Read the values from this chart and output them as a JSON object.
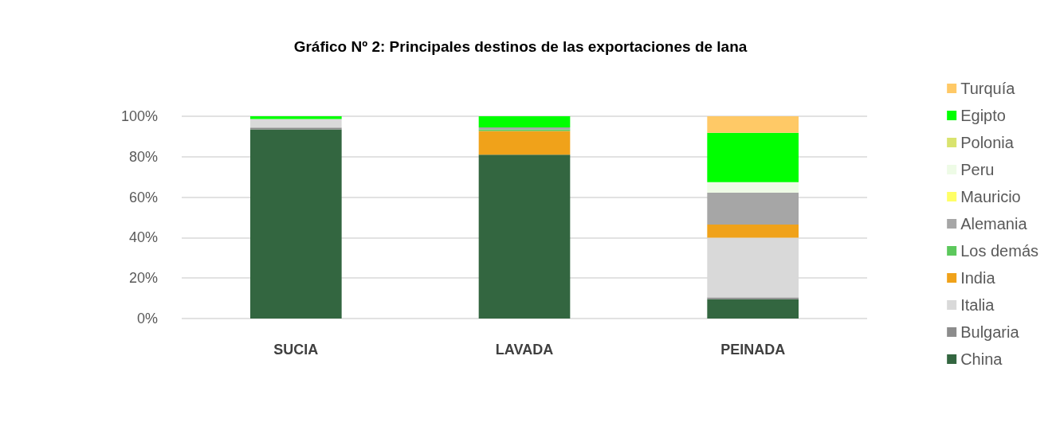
{
  "chart_data": {
    "type": "bar",
    "title": "Gráfico Nº 2: Principales destinos de las exportaciones de lana",
    "categories": [
      "SUCIA",
      "LAVADA",
      "PEINADA"
    ],
    "stacked": true,
    "ylim": [
      0,
      100
    ],
    "yticks": [
      {
        "value": 0,
        "label": "0%"
      },
      {
        "value": 20,
        "label": "20%"
      },
      {
        "value": 40,
        "label": "40%"
      },
      {
        "value": 60,
        "label": "60%"
      },
      {
        "value": 80,
        "label": "80%"
      },
      {
        "value": 100,
        "label": "100%"
      }
    ],
    "grid": "y",
    "legend": "right",
    "series": [
      {
        "name": "China",
        "color": "#336640",
        "values": [
          93.5,
          81,
          9.5
        ]
      },
      {
        "name": "Bulgaria",
        "color": "#8c8c8c",
        "values": [
          0.9,
          0,
          0.9
        ]
      },
      {
        "name": "Italia",
        "color": "#d9d9d9",
        "values": [
          4.2,
          0,
          29.6
        ]
      },
      {
        "name": "India",
        "color": "#f0a21a",
        "values": [
          0,
          11.7,
          6.5
        ]
      },
      {
        "name": "Los demás",
        "color": "#5cc85c",
        "values": [
          0,
          0.8,
          0
        ]
      },
      {
        "name": "Alemania",
        "color": "#a6a6a6",
        "values": [
          0,
          1,
          15.7
        ]
      },
      {
        "name": "Mauricio",
        "color": "#ffff66",
        "values": [
          0,
          0,
          0
        ]
      },
      {
        "name": "Peru",
        "color": "#eefbe6",
        "values": [
          0,
          0,
          5.2
        ]
      },
      {
        "name": "Polonia",
        "color": "#d9e36e",
        "values": [
          0,
          0,
          0
        ]
      },
      {
        "name": "Egipto",
        "color": "#00ff00",
        "values": [
          1.4,
          5.5,
          24.4
        ]
      },
      {
        "name": "Turquía",
        "color": "#ffc966",
        "values": [
          0,
          0,
          8.2
        ]
      }
    ]
  }
}
